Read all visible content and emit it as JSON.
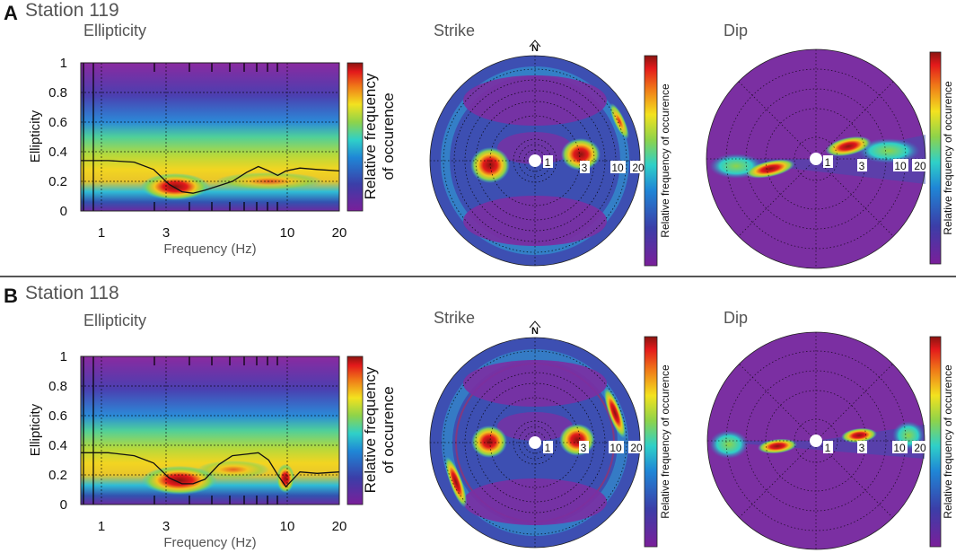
{
  "chart_data": [
    {
      "panel": "A",
      "station": "Station 119",
      "ellipticity": {
        "type": "heatmap",
        "title": "Ellipticity",
        "ylabel": "Ellipticity",
        "xlabel": "Frequency (Hz)",
        "xscale": "log",
        "xlim": [
          0.7,
          20
        ],
        "ylim": [
          0,
          1
        ],
        "yticks": [
          "0",
          "0.2",
          "0.4",
          "0.6",
          "0.8",
          "1"
        ],
        "xticks": [
          "1",
          "3",
          "10",
          "20"
        ],
        "colorbar_label_1": "Relative frequency",
        "colorbar_label_2": "of occurence",
        "curve": {
          "freq": [
            0.7,
            1.0,
            1.4,
            1.8,
            2.2,
            2.6,
            3.0,
            3.5,
            4.2,
            5.0,
            6.0,
            7.0,
            8.0,
            9.0,
            10.0,
            12.0,
            15.0,
            20.0
          ],
          "ellipticity": [
            0.34,
            0.34,
            0.33,
            0.28,
            0.18,
            0.13,
            0.12,
            0.14,
            0.17,
            0.2,
            0.26,
            0.3,
            0.27,
            0.24,
            0.27,
            0.29,
            0.28,
            0.27
          ]
        }
      },
      "strike": {
        "type": "polar-heatmap",
        "title": "Strike",
        "north": "N",
        "rings": [
          "1",
          "3",
          "10",
          "20"
        ],
        "colorbar_label": "Relative frequency of occurence"
      },
      "dip": {
        "type": "polar-heatmap",
        "title": "Dip",
        "rings": [
          "1",
          "3",
          "10",
          "20"
        ],
        "colorbar_label": "Relative frequency of occurence"
      }
    },
    {
      "panel": "B",
      "station": "Station 118",
      "ellipticity": {
        "type": "heatmap",
        "title": "Ellipticity",
        "ylabel": "Ellipticity",
        "xlabel": "Frequency (Hz)",
        "xscale": "log",
        "xlim": [
          0.7,
          20
        ],
        "ylim": [
          0,
          1
        ],
        "yticks": [
          "0",
          "0.2",
          "0.4",
          "0.6",
          "0.8",
          "1"
        ],
        "xticks": [
          "1",
          "3",
          "10",
          "20"
        ],
        "colorbar_label_1": "Relative frequency",
        "colorbar_label_2": "of occurence",
        "curve": {
          "freq": [
            0.7,
            1.0,
            1.4,
            1.8,
            2.2,
            2.6,
            3.0,
            3.5,
            4.2,
            5.0,
            6.0,
            7.0,
            8.0,
            9.0,
            10.0,
            12.0,
            15.0,
            20.0
          ],
          "ellipticity": [
            0.35,
            0.35,
            0.33,
            0.28,
            0.18,
            0.14,
            0.14,
            0.17,
            0.27,
            0.33,
            0.34,
            0.35,
            0.3,
            0.2,
            0.12,
            0.22,
            0.21,
            0.22
          ]
        }
      },
      "strike": {
        "type": "polar-heatmap",
        "title": "Strike",
        "north": "N",
        "rings": [
          "1",
          "3",
          "10",
          "20"
        ],
        "colorbar_label": "Relative frequency of occurence"
      },
      "dip": {
        "type": "polar-heatmap",
        "title": "Dip",
        "rings": [
          "1",
          "3",
          "10",
          "20"
        ],
        "colorbar_label": "Relative frequency of occurence"
      }
    }
  ]
}
